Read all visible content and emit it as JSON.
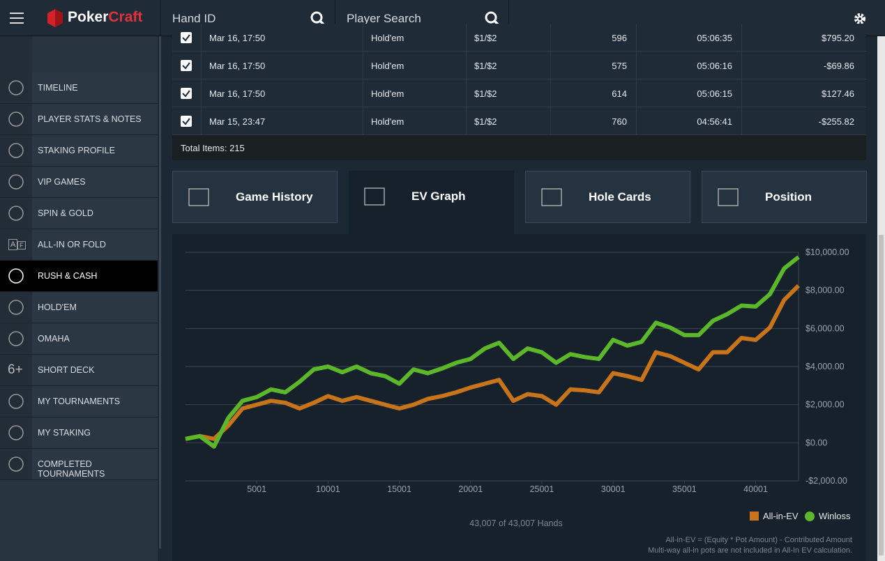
{
  "header": {
    "logo": [
      "Poker",
      "Craft"
    ],
    "hand_search": "Hand ID",
    "player_search": "Player Search"
  },
  "sidebar": {
    "items": [
      "TIMELINE",
      "PLAYER STATS & NOTES",
      "STAKING PROFILE",
      "VIP GAMES",
      "SPIN & GOLD",
      "ALL-IN OR FOLD",
      "RUSH & CASH",
      "HOLD'EM",
      "OMAHA",
      "SHORT DECK",
      "MY TOURNAMENTS",
      "MY STAKING",
      "COMPLETED TOURNAMENTS"
    ],
    "active": "RUSH & CASH",
    "short_deck_icon": "6+",
    "all_in_icon": [
      "A",
      "F"
    ]
  },
  "table": {
    "rows": [
      [
        "Mar 16, 17:50",
        "Hold'em",
        "$1/$2",
        596,
        "05:06:35",
        "$795.20"
      ],
      [
        "Mar 16, 17:50",
        "Hold'em",
        "$1/$2",
        575,
        "05:06:16",
        "-$69.86"
      ],
      [
        "Mar 16, 17:50",
        "Hold'em",
        "$1/$2",
        614,
        "05:06:15",
        "$127.46"
      ],
      [
        "Mar 15, 23:47",
        "Hold'em",
        "$1/$2",
        760,
        "04:56:41",
        "-$255.82"
      ]
    ],
    "total": "Total Items: 215"
  },
  "tabs": {
    "items": [
      "Game History",
      "EV Graph",
      "Hole Cards",
      "Position"
    ],
    "active": "EV Graph"
  },
  "chart_data": {
    "type": "line",
    "x": [
      1,
      1001,
      2001,
      3001,
      4001,
      5001,
      6001,
      7001,
      8001,
      9001,
      10001,
      11001,
      12001,
      13001,
      14001,
      15001,
      16001,
      17001,
      18001,
      19001,
      20001,
      21001,
      22001,
      23001,
      24001,
      25001,
      26001,
      27001,
      28001,
      29001,
      30001,
      31001,
      32001,
      33001,
      34001,
      35001,
      36001,
      37001,
      38001,
      39001,
      40001,
      41001,
      42001,
      43007
    ],
    "series": [
      {
        "name": "All-in-EV",
        "color": "#c8741a",
        "values": [
          200,
          350,
          200,
          900,
          1800,
          2000,
          2200,
          2100,
          1800,
          2100,
          2450,
          2200,
          2400,
          2200,
          2000,
          1800,
          2000,
          2300,
          2450,
          2650,
          2900,
          3100,
          3300,
          2200,
          2550,
          2450,
          2000,
          2800,
          2750,
          2650,
          3650,
          3500,
          3300,
          4750,
          4550,
          4200,
          3850,
          4750,
          4750,
          5500,
          5400,
          6050,
          7500,
          8250
        ]
      },
      {
        "name": "Winloss",
        "color": "#5cb82a",
        "values": [
          200,
          350,
          -200,
          1300,
          2200,
          2400,
          2800,
          2650,
          3200,
          3850,
          4000,
          3700,
          4000,
          3650,
          3500,
          3100,
          3850,
          3650,
          3900,
          4200,
          4400,
          4950,
          5250,
          4400,
          4950,
          4750,
          4200,
          4650,
          4500,
          4400,
          5400,
          5100,
          5300,
          6300,
          6050,
          5650,
          5650,
          6400,
          6750,
          7200,
          7150,
          7800,
          9150,
          9750
        ]
      }
    ],
    "xlim": [
      1,
      43007
    ],
    "xticks": [
      5001,
      10001,
      15001,
      20001,
      25001,
      30001,
      35001,
      40001
    ],
    "ylim": [
      -2000,
      10000
    ],
    "yticks": [
      {
        "value": -2000,
        "label": "-$2,000.00"
      },
      {
        "value": 0,
        "label": "$0.00"
      },
      {
        "value": 2000,
        "label": "$2,000.00"
      },
      {
        "value": 4000,
        "label": "$4,000.00"
      },
      {
        "value": 6000,
        "label": "$6,000.00"
      },
      {
        "value": 8000,
        "label": "$8,000.00"
      },
      {
        "value": 10000,
        "label": "$10,000.00"
      }
    ],
    "grid": true,
    "xlabel": "43,007 of 43,007 Hands",
    "legend": "bottom-right"
  },
  "footnotes": [
    "All-in-EV = (Equity * Pot Amount) - Contributed Amount",
    "Multi-way all-in pots are not included in All-In EV calculation."
  ]
}
